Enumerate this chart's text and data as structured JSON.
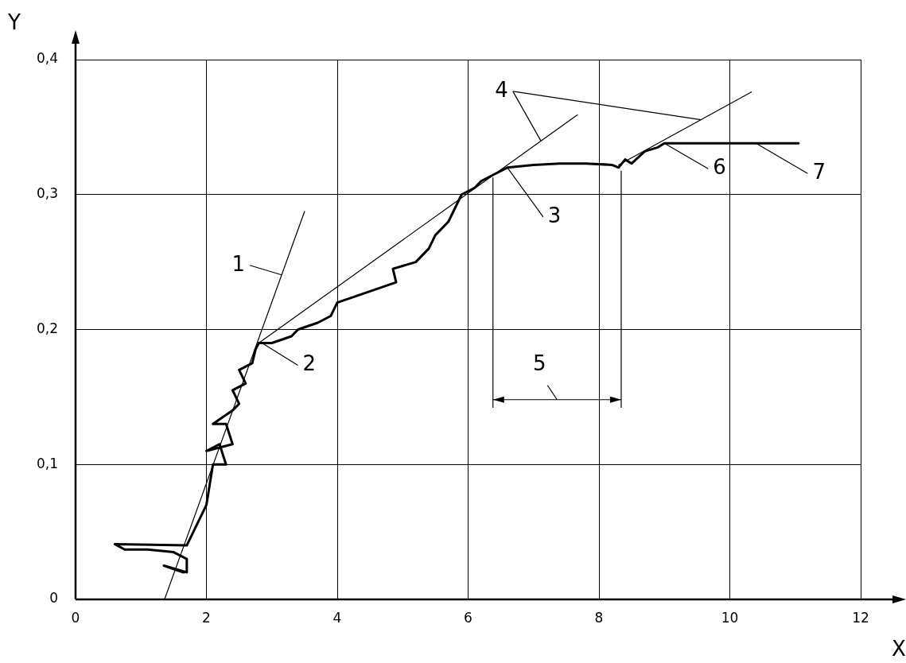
{
  "chart_data": {
    "type": "line",
    "xlabel": "X",
    "ylabel": "Y",
    "xlim": [
      0,
      12
    ],
    "ylim": [
      0,
      0.4
    ],
    "xticks": [
      0,
      2,
      4,
      6,
      8,
      10,
      12
    ],
    "yticks": [
      0,
      {
        "value": 0.1,
        "label": "0,1"
      },
      {
        "value": 0.2,
        "label": "0,2"
      },
      {
        "value": 0.3,
        "label": "0,3"
      },
      {
        "value": 0.4,
        "label": "0,4"
      }
    ],
    "grid": true,
    "legend": false,
    "marker": "none",
    "series": [
      {
        "color": "#000000",
        "x": [
          1.65,
          1.35,
          1.7,
          1.7,
          1.5,
          1.1,
          0.75,
          0.6,
          1.7,
          1.8,
          1.9,
          2.0,
          2.05,
          2.1,
          2.3,
          2.2,
          2.0,
          2.4,
          2.3,
          2.1,
          2.4,
          2.5,
          2.4,
          2.6,
          2.5,
          2.7,
          2.75,
          2.8,
          3.0,
          3.3,
          3.4,
          3.7,
          3.9,
          4.0,
          4.3,
          4.6,
          4.9,
          4.85,
          5.2,
          5.4,
          5.5,
          5.7,
          5.8,
          5.9,
          6.1,
          6.2,
          6.4,
          6.6,
          7.0,
          7.4,
          7.8,
          8.2,
          8.3,
          8.4,
          8.5,
          8.7,
          8.9,
          9.0,
          11.05
        ],
        "values": [
          0.02,
          0.025,
          0.02,
          0.03,
          0.035,
          0.037,
          0.037,
          0.041,
          0.04,
          0.05,
          0.06,
          0.07,
          0.085,
          0.1,
          0.1,
          0.115,
          0.11,
          0.115,
          0.13,
          0.13,
          0.14,
          0.145,
          0.155,
          0.16,
          0.17,
          0.175,
          0.185,
          0.19,
          0.19,
          0.195,
          0.2,
          0.205,
          0.21,
          0.22,
          0.225,
          0.23,
          0.235,
          0.245,
          0.25,
          0.26,
          0.27,
          0.28,
          0.29,
          0.3,
          0.305,
          0.31,
          0.315,
          0.32,
          0.322,
          0.323,
          0.323,
          0.322,
          0.32,
          0.326,
          0.323,
          0.332,
          0.335,
          0.338,
          0.338
        ]
      },
      {
        "type": "line",
        "color": "#000000",
        "x": [
          1.36,
          3.5
        ],
        "values": [
          0,
          0.2875
        ]
      },
      {
        "type": "line",
        "color": "#000000",
        "x": [
          2.8,
          7.67
        ],
        "values": [
          0.19,
          0.359
        ]
      },
      {
        "type": "line",
        "color": "#000000",
        "x": [
          8.3,
          10.33
        ],
        "values": [
          0.322,
          0.376
        ]
      }
    ],
    "ref_lines": [
      {
        "axis": "x",
        "value": 6.38
      },
      {
        "axis": "x",
        "value": 8.34
      }
    ],
    "annotations": [
      {
        "text": "1",
        "x": 3.15,
        "y": 0.2405
      },
      {
        "text": "2",
        "x": 2.85,
        "y": 0.19
      },
      {
        "text": "3",
        "x": 6.6,
        "y": 0.32
      },
      "5",
      {
        "text": "4",
        "x": 7.11,
        "y": 0.34
      },
      {
        "text": "6",
        "x": 9.0,
        "y": 0.338
      },
      {
        "text": "7",
        "x": 10.4,
        "y": 0.338
      }
    ]
  }
}
